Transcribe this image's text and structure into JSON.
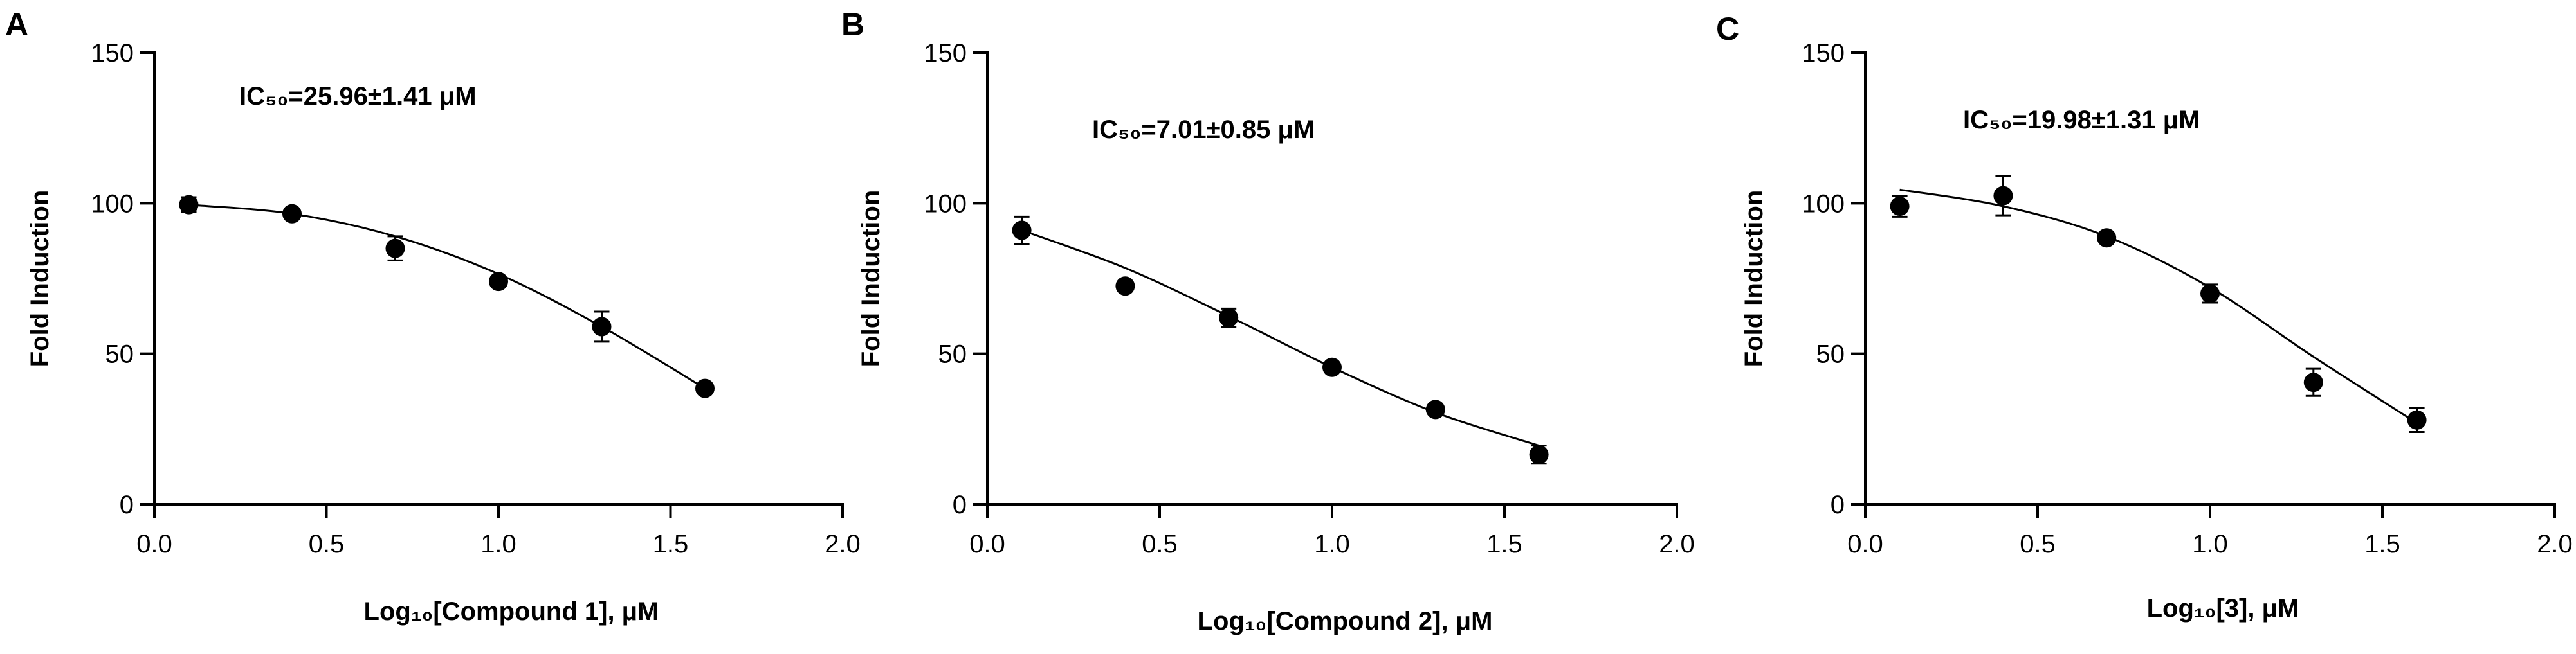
{
  "chart_data": [
    {
      "type": "scatter",
      "panel": "A",
      "ic50_text": "IC₅₀=25.96±1.41 μM",
      "xlabel": "Log₁₀[Compound 1],  μM",
      "ylabel": "Fold Induction",
      "xlim": [
        0.0,
        2.0
      ],
      "ylim": [
        0,
        150
      ],
      "xticks": [
        "0.0",
        "0.5",
        "1.0",
        "1.5",
        "2.0"
      ],
      "yticks": [
        "0",
        "50",
        "100",
        "150"
      ],
      "grid": false,
      "points": [
        {
          "x": 0.1,
          "y": 99.5,
          "err": 2.5
        },
        {
          "x": 0.4,
          "y": 96.5,
          "err": 1.5
        },
        {
          "x": 0.7,
          "y": 85,
          "err": 4
        },
        {
          "x": 1.0,
          "y": 74,
          "err": 1.5
        },
        {
          "x": 1.3,
          "y": 59,
          "err": 5
        },
        {
          "x": 1.6,
          "y": 38.5,
          "err": 1.5
        }
      ],
      "fit_curve": [
        [
          0.1,
          99.5
        ],
        [
          0.4,
          96.5
        ],
        [
          0.7,
          89
        ],
        [
          1.0,
          76.5
        ],
        [
          1.3,
          59
        ],
        [
          1.6,
          38.5
        ]
      ]
    },
    {
      "type": "scatter",
      "panel": "B",
      "ic50_text": "IC₅₀=7.01±0.85 μM",
      "xlabel": "Log₁₀[Compound 2], μM",
      "ylabel": "Fold Induction",
      "xlim": [
        0.0,
        2.0
      ],
      "ylim": [
        0,
        150
      ],
      "xticks": [
        "0.0",
        "0.5",
        "1.0",
        "1.5",
        "2.0"
      ],
      "yticks": [
        "0",
        "50",
        "100",
        "150"
      ],
      "grid": false,
      "points": [
        {
          "x": 0.1,
          "y": 91,
          "err": 4.5
        },
        {
          "x": 0.4,
          "y": 72.5,
          "err": 1.5
        },
        {
          "x": 0.7,
          "y": 62,
          "err": 3
        },
        {
          "x": 1.0,
          "y": 45.5,
          "err": 1.5
        },
        {
          "x": 1.3,
          "y": 31.5,
          "err": 1.5
        },
        {
          "x": 1.6,
          "y": 16.5,
          "err": 3
        }
      ],
      "fit_curve": [
        [
          0.1,
          91
        ],
        [
          0.4,
          78.5
        ],
        [
          0.7,
          62.5
        ],
        [
          1.0,
          45.5
        ],
        [
          1.3,
          30.5
        ],
        [
          1.6,
          19.5
        ]
      ]
    },
    {
      "type": "scatter",
      "panel": "C",
      "ic50_text": "IC₅₀=19.98±1.31 μM",
      "xlabel": "Log₁₀[3], μM",
      "ylabel": "Fold Induction",
      "xlim": [
        0.0,
        2.0
      ],
      "ylim": [
        0,
        150
      ],
      "xticks": [
        "0.0",
        "0.5",
        "1.0",
        "1.5",
        "2.0"
      ],
      "yticks": [
        "0",
        "50",
        "100",
        "150"
      ],
      "grid": false,
      "points": [
        {
          "x": 0.1,
          "y": 99,
          "err": 3.5
        },
        {
          "x": 0.4,
          "y": 102.5,
          "err": 6.5
        },
        {
          "x": 0.7,
          "y": 88.5,
          "err": 1.5
        },
        {
          "x": 1.0,
          "y": 70,
          "err": 3
        },
        {
          "x": 1.3,
          "y": 40.5,
          "err": 4.5
        },
        {
          "x": 1.6,
          "y": 28,
          "err": 4
        }
      ],
      "fit_curve": [
        [
          0.1,
          104.5
        ],
        [
          0.4,
          99
        ],
        [
          0.7,
          89
        ],
        [
          1.0,
          72
        ],
        [
          1.3,
          49
        ],
        [
          1.6,
          27
        ]
      ]
    }
  ]
}
